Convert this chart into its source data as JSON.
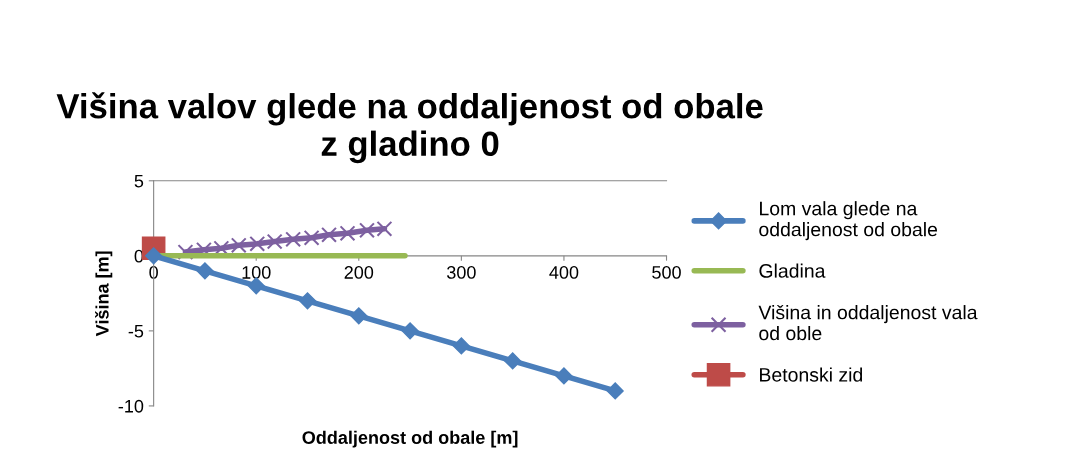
{
  "chart_data": {
    "type": "line",
    "title": "Višina valov glede na oddaljenost od obale\nz gladino 0",
    "xlabel": "Oddaljenost od obale [m]",
    "ylabel": "Višina [m]",
    "xlim": [
      0,
      500
    ],
    "xticks": [
      0,
      100,
      200,
      300,
      400,
      500
    ],
    "ylim": [
      -10,
      5
    ],
    "yticks": [
      -10,
      -5,
      0,
      5
    ],
    "grid": false,
    "legend": "right",
    "series": [
      {
        "name": "Lom vala glede na\noddaljenost od obale",
        "color": "#4a7ebb",
        "marker": "diamond",
        "x": [
          0,
          50,
          100,
          150,
          200,
          250,
          300,
          350,
          400,
          450
        ],
        "values": [
          0,
          -1,
          -2,
          -3,
          -4,
          -5,
          -6,
          -7,
          -8,
          -9
        ]
      },
      {
        "name": "Gladina",
        "color": "#98b954",
        "x": [
          0,
          245
        ],
        "values": [
          0,
          0
        ]
      },
      {
        "name": "Višina in oddaljenost vala\nod oble",
        "color": "#7d60a0",
        "marker": "cross",
        "x": [
          31,
          49,
          66,
          83,
          101,
          118,
          136,
          154,
          171,
          189,
          208,
          225
        ],
        "values": [
          0.25,
          0.4,
          0.5,
          0.7,
          0.8,
          0.95,
          1.1,
          1.2,
          1.4,
          1.5,
          1.7,
          1.8
        ]
      },
      {
        "name": "Betonski zid",
        "color": "#be4b48",
        "marker": "square",
        "x": [
          0
        ],
        "values": [
          0.5
        ]
      }
    ]
  }
}
